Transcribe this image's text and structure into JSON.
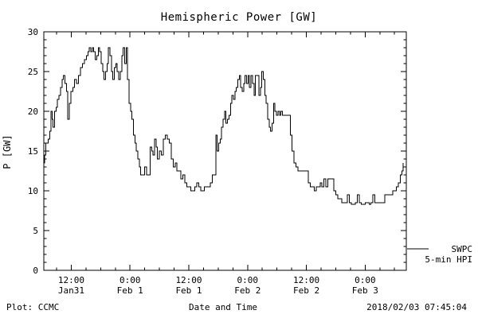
{
  "title": "Hemispheric Power [GW]",
  "y_axis_label": "P [GW]",
  "footer": {
    "plot_credit": "Plot: CCMC",
    "xaxis_title": "Date and Time",
    "timestamp": "2018/02/03 07:45:04"
  },
  "legend": {
    "source": "SWPC",
    "product": "5-min HPI"
  },
  "colors": {
    "line": "#000000",
    "axis": "#000000",
    "background": "#ffffff"
  },
  "chart_data": {
    "type": "line",
    "style": "step",
    "title": "Hemispheric Power [GW]",
    "xlabel": "Date and Time",
    "ylabel": "P [GW]",
    "x_unit": "hours since 2018-01-31 00:00 UTC",
    "xlim": [
      6.4,
      80.4
    ],
    "ylim": [
      0,
      30
    ],
    "yticks": [
      0,
      5,
      10,
      15,
      20,
      25,
      30
    ],
    "y_minor_step": 1,
    "x_minor_step": 3,
    "grid": false,
    "legend_position": "right-bottom-outside",
    "xticks": [
      {
        "x": 12,
        "time": "12:00",
        "date": "Jan31"
      },
      {
        "x": 24,
        "time": "0:00",
        "date": "Feb 1"
      },
      {
        "x": 36,
        "time": "12:00",
        "date": "Feb 1"
      },
      {
        "x": 48,
        "time": "0:00",
        "date": "Feb 2"
      },
      {
        "x": 60,
        "time": "12:00",
        "date": "Feb 2"
      },
      {
        "x": 72,
        "time": "0:00",
        "date": "Feb 3"
      }
    ],
    "series": [
      {
        "name": "SWPC 5-min HPI",
        "color": "#000000",
        "points": [
          [
            6.4,
            13.5
          ],
          [
            6.6,
            14.5
          ],
          [
            6.8,
            16
          ],
          [
            7.0,
            16
          ],
          [
            7.3,
            16.5
          ],
          [
            7.6,
            17.5
          ],
          [
            7.9,
            20
          ],
          [
            8.1,
            19
          ],
          [
            8.3,
            18
          ],
          [
            8.6,
            20
          ],
          [
            8.9,
            20.5
          ],
          [
            9.2,
            21.5
          ],
          [
            9.5,
            22
          ],
          [
            9.8,
            23
          ],
          [
            10.1,
            24
          ],
          [
            10.4,
            24.5
          ],
          [
            10.7,
            23.5
          ],
          [
            11.0,
            22.5
          ],
          [
            11.3,
            19
          ],
          [
            11.6,
            21
          ],
          [
            11.9,
            22.5
          ],
          [
            12.3,
            23
          ],
          [
            12.7,
            24
          ],
          [
            13.1,
            23.5
          ],
          [
            13.5,
            24.5
          ],
          [
            13.9,
            25.5
          ],
          [
            14.3,
            26
          ],
          [
            14.7,
            26.5
          ],
          [
            15.1,
            27
          ],
          [
            15.4,
            27.5
          ],
          [
            15.7,
            28
          ],
          [
            16.0,
            27.5
          ],
          [
            16.3,
            28
          ],
          [
            16.6,
            27.5
          ],
          [
            16.9,
            26.5
          ],
          [
            17.2,
            27
          ],
          [
            17.5,
            28
          ],
          [
            17.8,
            27.5
          ],
          [
            18.1,
            26
          ],
          [
            18.4,
            25
          ],
          [
            18.7,
            24
          ],
          [
            19.0,
            25
          ],
          [
            19.3,
            26
          ],
          [
            19.6,
            28
          ],
          [
            19.9,
            27
          ],
          [
            20.2,
            25
          ],
          [
            20.5,
            24
          ],
          [
            20.8,
            25.5
          ],
          [
            21.1,
            26
          ],
          [
            21.4,
            25
          ],
          [
            21.7,
            24
          ],
          [
            22.0,
            25
          ],
          [
            22.3,
            27
          ],
          [
            22.6,
            28
          ],
          [
            22.9,
            26
          ],
          [
            23.2,
            28
          ],
          [
            23.5,
            24
          ],
          [
            23.8,
            21
          ],
          [
            24.1,
            20
          ],
          [
            24.4,
            19
          ],
          [
            24.7,
            17
          ],
          [
            25.0,
            16
          ],
          [
            25.3,
            15
          ],
          [
            25.6,
            14
          ],
          [
            25.9,
            13
          ],
          [
            26.2,
            12
          ],
          [
            26.6,
            12
          ],
          [
            27.0,
            13
          ],
          [
            27.4,
            12
          ],
          [
            27.8,
            12
          ],
          [
            28.1,
            15.5
          ],
          [
            28.4,
            15
          ],
          [
            28.7,
            14.5
          ],
          [
            29.0,
            16.5
          ],
          [
            29.3,
            15.5
          ],
          [
            29.6,
            14
          ],
          [
            30.0,
            15
          ],
          [
            30.4,
            14.5
          ],
          [
            30.8,
            16.5
          ],
          [
            31.2,
            17
          ],
          [
            31.6,
            16.5
          ],
          [
            32.0,
            16
          ],
          [
            32.4,
            14
          ],
          [
            32.8,
            13
          ],
          [
            33.2,
            13.5
          ],
          [
            33.6,
            12.5
          ],
          [
            34.0,
            12.5
          ],
          [
            34.4,
            11.5
          ],
          [
            34.8,
            12
          ],
          [
            35.2,
            11
          ],
          [
            35.6,
            10.5
          ],
          [
            36.0,
            10.5
          ],
          [
            36.4,
            10
          ],
          [
            36.8,
            10
          ],
          [
            37.2,
            10.5
          ],
          [
            37.6,
            11
          ],
          [
            38.0,
            10.5
          ],
          [
            38.4,
            10
          ],
          [
            38.8,
            10
          ],
          [
            39.2,
            10.5
          ],
          [
            39.6,
            10.5
          ],
          [
            40.0,
            10.5
          ],
          [
            40.4,
            11
          ],
          [
            40.8,
            12
          ],
          [
            41.2,
            12
          ],
          [
            41.5,
            17
          ],
          [
            41.8,
            15
          ],
          [
            42.1,
            16
          ],
          [
            42.4,
            16.5
          ],
          [
            42.7,
            18
          ],
          [
            43.0,
            19
          ],
          [
            43.3,
            20
          ],
          [
            43.6,
            18.5
          ],
          [
            43.9,
            19
          ],
          [
            44.2,
            19.5
          ],
          [
            44.5,
            21
          ],
          [
            44.8,
            22
          ],
          [
            45.1,
            21.5
          ],
          [
            45.4,
            22.5
          ],
          [
            45.7,
            23
          ],
          [
            46.0,
            24
          ],
          [
            46.3,
            24.5
          ],
          [
            46.6,
            23
          ],
          [
            46.9,
            22.5
          ],
          [
            47.2,
            23.5
          ],
          [
            47.5,
            24.5
          ],
          [
            47.8,
            23.5
          ],
          [
            48.1,
            24.5
          ],
          [
            48.4,
            23
          ],
          [
            48.7,
            24.5
          ],
          [
            49.0,
            23.5
          ],
          [
            49.3,
            22
          ],
          [
            49.6,
            24.5
          ],
          [
            50.0,
            24.5
          ],
          [
            50.3,
            22
          ],
          [
            50.6,
            23
          ],
          [
            50.9,
            25
          ],
          [
            51.2,
            24
          ],
          [
            51.5,
            22
          ],
          [
            51.8,
            21
          ],
          [
            52.1,
            19
          ],
          [
            52.4,
            18
          ],
          [
            52.7,
            17.5
          ],
          [
            53.0,
            18.5
          ],
          [
            53.3,
            21
          ],
          [
            53.6,
            20
          ],
          [
            53.9,
            19.5
          ],
          [
            54.2,
            20
          ],
          [
            54.5,
            19.5
          ],
          [
            54.8,
            20
          ],
          [
            55.1,
            19.5
          ],
          [
            55.5,
            19.5
          ],
          [
            55.9,
            19.5
          ],
          [
            56.3,
            19.5
          ],
          [
            56.7,
            17
          ],
          [
            57.1,
            15
          ],
          [
            57.5,
            13.5
          ],
          [
            57.9,
            13
          ],
          [
            58.3,
            12.5
          ],
          [
            58.7,
            12.5
          ],
          [
            59.1,
            12.5
          ],
          [
            59.5,
            12.5
          ],
          [
            60.0,
            12.5
          ],
          [
            60.4,
            11
          ],
          [
            60.8,
            10.5
          ],
          [
            61.2,
            10.5
          ],
          [
            61.6,
            10
          ],
          [
            62.0,
            10.5
          ],
          [
            62.4,
            10.5
          ],
          [
            62.8,
            11
          ],
          [
            63.2,
            10.5
          ],
          [
            63.6,
            11.5
          ],
          [
            64.0,
            10.5
          ],
          [
            64.4,
            11.5
          ],
          [
            64.8,
            11.5
          ],
          [
            65.2,
            11.5
          ],
          [
            65.6,
            10
          ],
          [
            66.0,
            9.5
          ],
          [
            66.4,
            9
          ],
          [
            66.8,
            9
          ],
          [
            67.2,
            8.5
          ],
          [
            67.6,
            8.5
          ],
          [
            68.0,
            8.5
          ],
          [
            68.4,
            9.5
          ],
          [
            68.8,
            8.5
          ],
          [
            69.2,
            8.3
          ],
          [
            69.6,
            8.3
          ],
          [
            70.0,
            8.5
          ],
          [
            70.4,
            9.5
          ],
          [
            70.8,
            8.5
          ],
          [
            71.2,
            8.3
          ],
          [
            71.6,
            8.3
          ],
          [
            72.0,
            8.5
          ],
          [
            72.4,
            8.5
          ],
          [
            72.8,
            8.3
          ],
          [
            73.2,
            8.5
          ],
          [
            73.6,
            9.5
          ],
          [
            74.0,
            8.5
          ],
          [
            74.4,
            8.5
          ],
          [
            74.8,
            8.5
          ],
          [
            75.2,
            8.5
          ],
          [
            75.6,
            8.5
          ],
          [
            76.0,
            9.5
          ],
          [
            76.4,
            9.5
          ],
          [
            76.8,
            9.5
          ],
          [
            77.2,
            9.5
          ],
          [
            77.6,
            10
          ],
          [
            78.0,
            10
          ],
          [
            78.4,
            10.5
          ],
          [
            78.8,
            11
          ],
          [
            79.2,
            12
          ],
          [
            79.5,
            12.5
          ],
          [
            79.75,
            13.5
          ]
        ]
      }
    ]
  }
}
